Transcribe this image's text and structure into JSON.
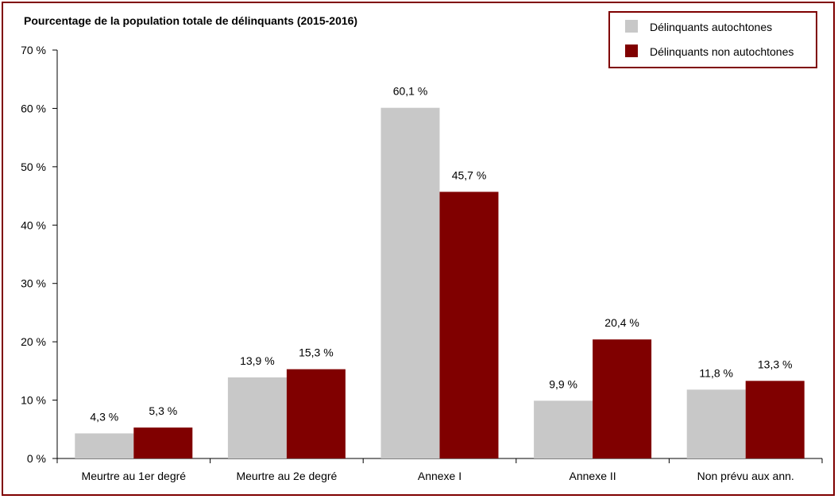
{
  "chart_data": {
    "type": "bar",
    "title": "",
    "ylabel": "Pourcentage de la population totale de délinquants (2015-2016)",
    "xlabel": "",
    "categories": [
      "Meurtre au 1er degré",
      "Meurtre au 2e degré",
      "Annexe I",
      "Annexe II",
      "Non prévu aux ann."
    ],
    "series": [
      {
        "name": "Délinquants autochtones",
        "color": "#c8c8c8",
        "values": [
          4.3,
          13.9,
          60.1,
          9.9,
          11.8
        ],
        "labels": [
          "4,3 %",
          "13,9 %",
          "60,1 %",
          "9,9 %",
          "11,8 %"
        ]
      },
      {
        "name": "Délinquants non autochtones",
        "color": "#800000",
        "values": [
          5.3,
          15.3,
          45.7,
          20.4,
          13.3
        ],
        "labels": [
          "5,3 %",
          "15,3 %",
          "45,7 %",
          "20,4 %",
          "13,3 %"
        ]
      }
    ],
    "ylim": [
      0,
      70
    ],
    "yticks": [
      0,
      10,
      20,
      30,
      40,
      50,
      60,
      70
    ],
    "ytick_labels": [
      "0 %",
      "10 %",
      "20 %",
      "30 %",
      "40 %",
      "50 %",
      "60 %",
      "70 %"
    ],
    "grid": false,
    "legend_position": "top-right"
  }
}
